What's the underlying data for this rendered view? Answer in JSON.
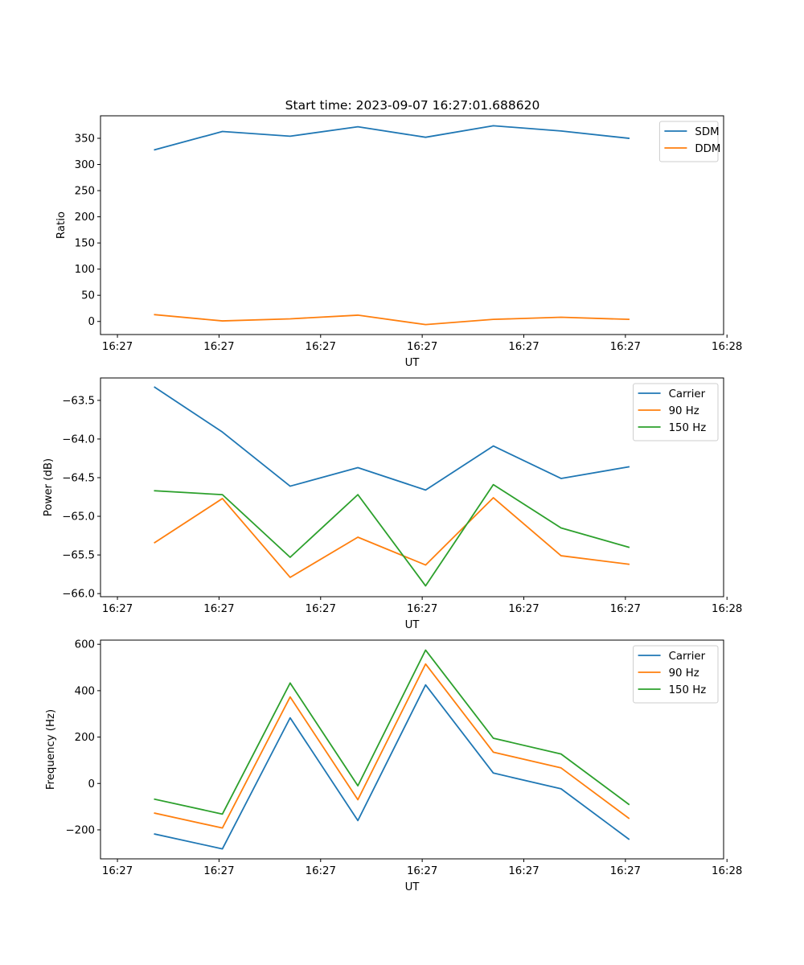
{
  "figure": {
    "title": "Start time: 2023-09-07 16:27:01.688620"
  },
  "colors": {
    "blue": "#1f77b4",
    "orange": "#ff7f0e",
    "green": "#2ca02c"
  },
  "chart_data": [
    {
      "type": "line",
      "id": "ratio",
      "title": "Start time: 2023-09-07 16:27:01.688620",
      "xlabel": "UT",
      "ylabel": "Ratio",
      "x": [
        1,
        2,
        3,
        4,
        5,
        6,
        7,
        8
      ],
      "xlim": [
        0.2,
        9.4
      ],
      "xticks": [
        0.45,
        1.95,
        3.45,
        4.95,
        6.45,
        7.95,
        9.45
      ],
      "xticklabels": [
        "16:27",
        "16:27",
        "16:27",
        "16:27",
        "16:27",
        "16:27",
        "16:28"
      ],
      "ylim": [
        -25,
        393
      ],
      "yticks": [
        0,
        50,
        100,
        150,
        200,
        250,
        300,
        350
      ],
      "yticklabels": [
        "0",
        "50",
        "100",
        "150",
        "200",
        "250",
        "300",
        "350"
      ],
      "legend_loc": "top-right",
      "series": [
        {
          "name": "SDM",
          "color": "#1f77b4",
          "values": [
            328,
            363,
            354,
            372,
            352,
            374,
            364,
            350
          ]
        },
        {
          "name": "DDM",
          "color": "#ff7f0e",
          "values": [
            13,
            1,
            5,
            12,
            -6,
            4,
            8,
            4
          ]
        }
      ]
    },
    {
      "type": "line",
      "id": "power",
      "title": "",
      "xlabel": "UT",
      "ylabel": "Power (dB)",
      "x": [
        1,
        2,
        3,
        4,
        5,
        6,
        7,
        8
      ],
      "xlim": [
        0.2,
        9.4
      ],
      "xticks": [
        0.45,
        1.95,
        3.45,
        4.95,
        6.45,
        7.95,
        9.45
      ],
      "xticklabels": [
        "16:27",
        "16:27",
        "16:27",
        "16:27",
        "16:27",
        "16:27",
        "16:28"
      ],
      "ylim": [
        -66.04,
        -63.21
      ],
      "yticks": [
        -66.0,
        -65.5,
        -65.0,
        -64.5,
        -64.0,
        -63.5
      ],
      "yticklabels": [
        "−66.0",
        "−65.5",
        "−65.0",
        "−64.5",
        "−64.0",
        "−63.5"
      ],
      "legend_loc": "top-right",
      "series": [
        {
          "name": "Carrier",
          "color": "#1f77b4",
          "values": [
            -63.33,
            -63.91,
            -64.61,
            -64.37,
            -64.66,
            -64.09,
            -64.51,
            -64.36
          ]
        },
        {
          "name": "90 Hz",
          "color": "#ff7f0e",
          "values": [
            -65.34,
            -64.77,
            -65.79,
            -65.27,
            -65.63,
            -64.76,
            -65.51,
            -65.62
          ]
        },
        {
          "name": "150 Hz",
          "color": "#2ca02c",
          "values": [
            -64.67,
            -64.72,
            -65.53,
            -64.72,
            -65.9,
            -64.59,
            -65.15,
            -65.4
          ]
        }
      ]
    },
    {
      "type": "line",
      "id": "frequency",
      "title": "",
      "xlabel": "UT",
      "ylabel": "Frequency (Hz)",
      "x": [
        1,
        2,
        3,
        4,
        5,
        6,
        7,
        8
      ],
      "xlim": [
        0.2,
        9.4
      ],
      "xticks": [
        0.45,
        1.95,
        3.45,
        4.95,
        6.45,
        7.95,
        9.45
      ],
      "xticklabels": [
        "16:27",
        "16:27",
        "16:27",
        "16:27",
        "16:27",
        "16:27",
        "16:28"
      ],
      "ylim": [
        -325,
        618
      ],
      "yticks": [
        -200,
        0,
        200,
        400,
        600
      ],
      "yticklabels": [
        "−200",
        "0",
        "200",
        "400",
        "600"
      ],
      "legend_loc": "top-right",
      "series": [
        {
          "name": "Carrier",
          "color": "#1f77b4",
          "values": [
            -218,
            -282,
            283,
            -160,
            425,
            45,
            -23,
            -240
          ]
        },
        {
          "name": "90 Hz",
          "color": "#ff7f0e",
          "values": [
            -128,
            -192,
            373,
            -70,
            515,
            135,
            67,
            -150
          ]
        },
        {
          "name": "150 Hz",
          "color": "#2ca02c",
          "values": [
            -68,
            -132,
            433,
            -10,
            575,
            195,
            127,
            -90
          ]
        }
      ]
    }
  ]
}
